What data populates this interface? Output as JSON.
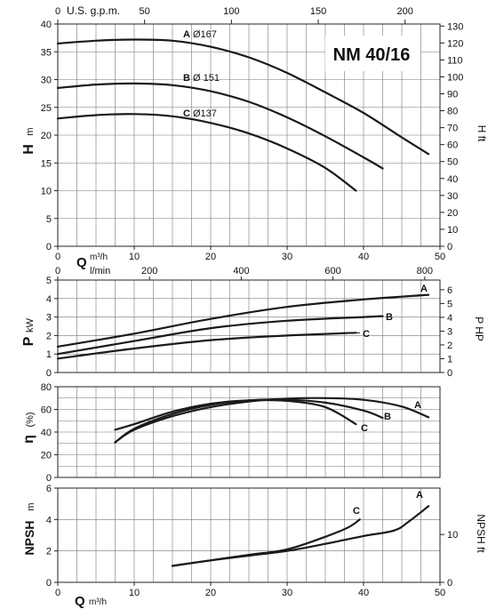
{
  "title": "NM 40/16",
  "colors": {
    "line": "#1a1a1a",
    "grid": "#777777",
    "background": "#ffffff"
  },
  "axis_labels": {
    "usgpm": "U.S. g.p.m.",
    "q": "Q",
    "q_unit_top": "m³/h",
    "q_unit_mid": "l/min",
    "q_unit_bottom": "m³/h",
    "h": "H",
    "h_unit": "m",
    "h_ft": "H ft",
    "p": "P",
    "p_unit": "kW",
    "p_hp": "P HP",
    "eta": "η",
    "eta_unit": "(%)",
    "npsh": "NPSH",
    "npsh_unit": "m",
    "npsh_ft": "NPSH ft"
  },
  "curve_labels": {
    "head_A": "A",
    "head_A_dia": "Ø167",
    "head_B": "B",
    "head_B_dia": "Ø 151",
    "head_C": "C",
    "head_C_dia": "Ø137",
    "power_A": "A",
    "power_B": "B",
    "power_C": "C",
    "eff_A": "A",
    "eff_B": "B",
    "eff_C": "C",
    "npsh_A": "A",
    "npsh_C": "C"
  },
  "chart_data": [
    {
      "type": "line",
      "panel": "head",
      "xlabel": "Q m³/h",
      "ylabel": "H m",
      "xlim": [
        0,
        50
      ],
      "ylim": [
        0,
        40
      ],
      "x_ticks": [
        "0",
        "10",
        "20",
        "30",
        "40",
        "50"
      ],
      "y_ticks": [
        "0",
        "5",
        "10",
        "15",
        "20",
        "25",
        "30",
        "35",
        "40"
      ],
      "top_axis": {
        "label": "U.S. g.p.m.",
        "ticks": [
          "0",
          "50",
          "100",
          "150",
          "200"
        ],
        "range": [
          0,
          220.1
        ]
      },
      "right_axis": {
        "label": "H ft",
        "ticks": [
          "0",
          "10",
          "20",
          "30",
          "40",
          "50",
          "60",
          "70",
          "80",
          "90",
          "100",
          "110",
          "120",
          "130"
        ],
        "range": [
          0,
          131.2
        ]
      },
      "grid": true,
      "series": [
        {
          "name": "A Ø167",
          "x": [
            0,
            5,
            10,
            15,
            20,
            25,
            30,
            35,
            40,
            45,
            48.5
          ],
          "y": [
            36.5,
            37.0,
            37.2,
            37.0,
            35.9,
            34.0,
            31.2,
            27.7,
            24.0,
            19.6,
            16.6
          ]
        },
        {
          "name": "B Ø 151",
          "x": [
            0,
            5,
            10,
            15,
            20,
            25,
            30,
            35,
            40,
            42.5
          ],
          "y": [
            28.5,
            29.1,
            29.3,
            29.0,
            27.9,
            26.0,
            23.2,
            19.8,
            16.0,
            14.0
          ]
        },
        {
          "name": "C Ø137",
          "x": [
            0,
            5,
            10,
            15,
            20,
            25,
            30,
            35,
            39
          ],
          "y": [
            23.0,
            23.6,
            23.8,
            23.4,
            22.2,
            20.3,
            17.6,
            14.1,
            10.0
          ]
        }
      ]
    },
    {
      "type": "line",
      "panel": "power",
      "ylabel": "P kW",
      "xlim": [
        0,
        50
      ],
      "ylim": [
        0,
        5
      ],
      "x_ticks_top": {
        "label": "l/min",
        "ticks": [
          "0",
          "200",
          "400",
          "600",
          "800"
        ],
        "range": [
          0,
          833.3
        ]
      },
      "y_ticks": [
        "0",
        "1",
        "2",
        "3",
        "4",
        "5"
      ],
      "right_axis": {
        "label": "P HP",
        "ticks": [
          "0",
          "1",
          "2",
          "3",
          "4",
          "5",
          "6"
        ],
        "range": [
          0,
          6.7
        ]
      },
      "grid": true,
      "series": [
        {
          "name": "A",
          "x": [
            0,
            10,
            20,
            30,
            40,
            48.5
          ],
          "y": [
            1.4,
            2.1,
            2.9,
            3.55,
            3.95,
            4.2
          ]
        },
        {
          "name": "B",
          "x": [
            0,
            10,
            20,
            30,
            40,
            42.5
          ],
          "y": [
            1.0,
            1.7,
            2.4,
            2.8,
            3.0,
            3.05
          ]
        },
        {
          "name": "C",
          "x": [
            0,
            10,
            20,
            30,
            39
          ],
          "y": [
            0.75,
            1.3,
            1.75,
            2.0,
            2.15
          ]
        }
      ]
    },
    {
      "type": "line",
      "panel": "efficiency",
      "ylabel": "η (%)",
      "xlim": [
        0,
        50
      ],
      "ylim": [
        0,
        80
      ],
      "y_ticks": [
        "0",
        "20",
        "40",
        "60",
        "80"
      ],
      "grid": true,
      "series": [
        {
          "name": "A",
          "x": [
            7.5,
            10,
            15,
            20,
            25,
            30,
            35,
            40,
            45,
            48.5
          ],
          "y": [
            31,
            42,
            54,
            62,
            67,
            69.5,
            70,
            68.5,
            62.5,
            53
          ]
        },
        {
          "name": "B",
          "x": [
            7.5,
            10,
            15,
            20,
            25,
            30,
            35,
            40,
            42.5
          ],
          "y": [
            31,
            43,
            56,
            64,
            68,
            68.5,
            66,
            59,
            52.5
          ]
        },
        {
          "name": "C",
          "x": [
            7.5,
            10,
            15,
            20,
            25,
            30,
            35,
            39
          ],
          "y": [
            42,
            47,
            58,
            65,
            68,
            67.5,
            62,
            47
          ]
        }
      ]
    },
    {
      "type": "line",
      "panel": "npsh",
      "xlabel": "Q m³/h",
      "ylabel": "NPSH m",
      "xlim": [
        0,
        50
      ],
      "ylim": [
        0,
        6
      ],
      "x_ticks": [
        "0",
        "10",
        "20",
        "30",
        "40",
        "50"
      ],
      "y_ticks": [
        "0",
        "2",
        "4",
        "6"
      ],
      "right_axis": {
        "label": "NPSH ft",
        "ticks": [
          "0",
          "10"
        ],
        "range": [
          0,
          19.7
        ]
      },
      "grid": true,
      "series": [
        {
          "name": "A",
          "x": [
            15,
            20,
            25,
            30,
            35,
            40,
            44,
            46,
            48.5
          ],
          "y": [
            1.05,
            1.4,
            1.7,
            2.0,
            2.45,
            2.95,
            3.3,
            3.9,
            4.85
          ]
        },
        {
          "name": "C",
          "x": [
            15,
            20,
            25,
            30,
            35,
            38,
            39.5
          ],
          "y": [
            1.05,
            1.4,
            1.75,
            2.1,
            2.9,
            3.5,
            4.0
          ]
        }
      ]
    }
  ]
}
